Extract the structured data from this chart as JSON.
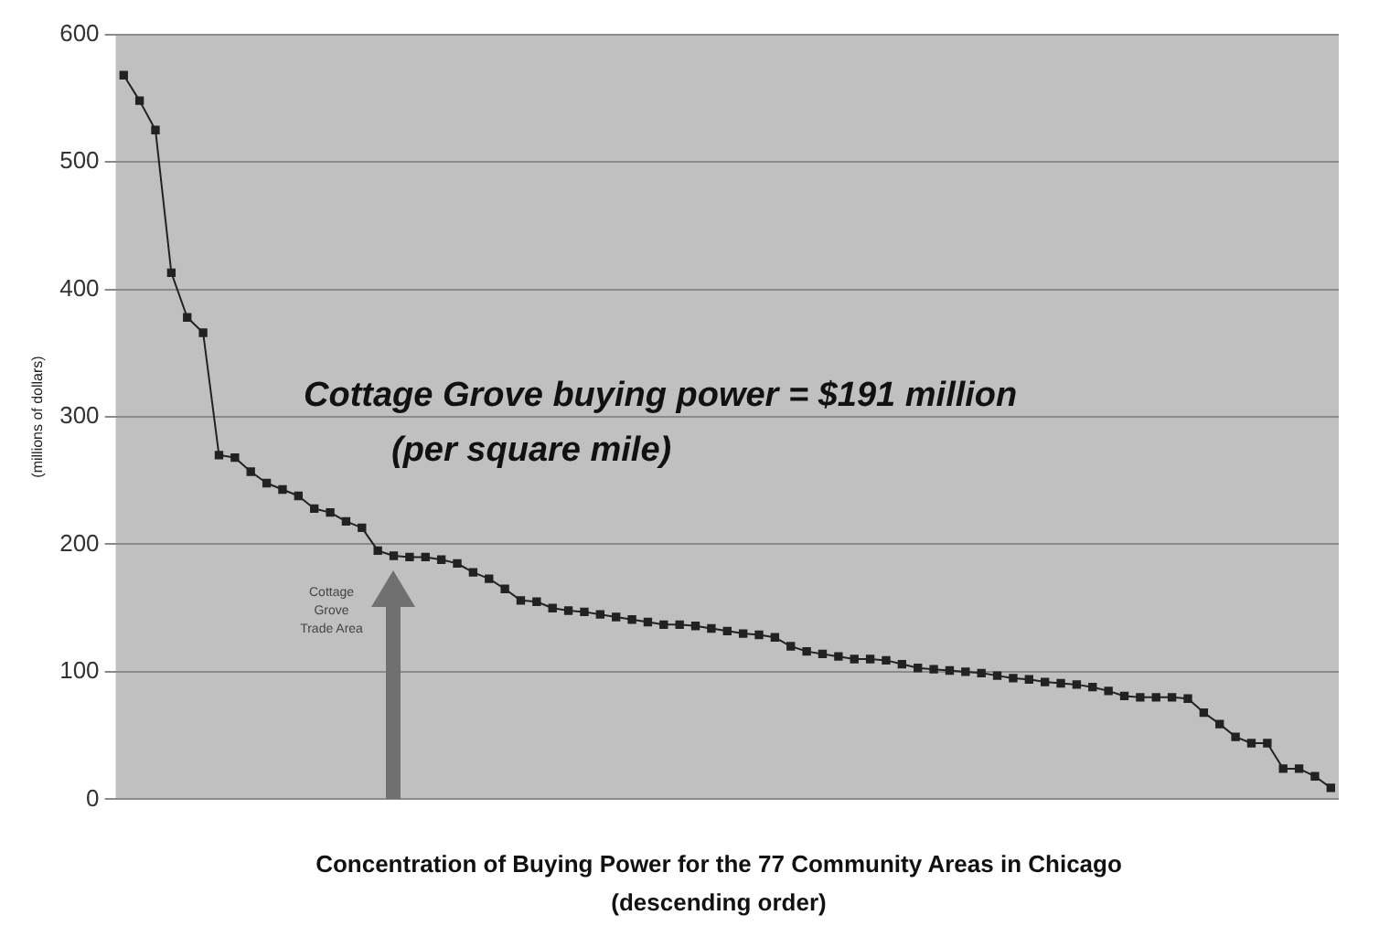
{
  "chart_data": {
    "type": "line",
    "ylabel": "(millions of dollars)",
    "xlabel": "Concentration of Buying Power for the 77 Community Areas in Chicago (descending order)",
    "categories": [
      null,
      null,
      null,
      null,
      null,
      null,
      null,
      null,
      null,
      null,
      null,
      null,
      null,
      null,
      null,
      null,
      null,
      null,
      null,
      null,
      null,
      null,
      null,
      null,
      null,
      null,
      null,
      null,
      null,
      null,
      null,
      null,
      null,
      null,
      null,
      null,
      null,
      null,
      null,
      null,
      null,
      null,
      null,
      null,
      null,
      null,
      null,
      null,
      null,
      null,
      null,
      null,
      null,
      null,
      null,
      null,
      null,
      null,
      null,
      null,
      null,
      null,
      null,
      null,
      null,
      null,
      null,
      null,
      null,
      null,
      null,
      null,
      null,
      null,
      null,
      null,
      null
    ],
    "series": [
      {
        "color": "#222222",
        "values": [
          568,
          548,
          525,
          413,
          378,
          366,
          270,
          268,
          257,
          248,
          243,
          238,
          228,
          225,
          218,
          213,
          195,
          191,
          190,
          190,
          188,
          185,
          178,
          173,
          165,
          156,
          155,
          150,
          148,
          147,
          145,
          143,
          141,
          139,
          137,
          137,
          136,
          134,
          132,
          130,
          129,
          127,
          120,
          116,
          114,
          112,
          110,
          110,
          109,
          106,
          103,
          102,
          101,
          100,
          99,
          97,
          95,
          94,
          92,
          91,
          90,
          88,
          85,
          81,
          80,
          80,
          80,
          79,
          68,
          59,
          49,
          44,
          44,
          24,
          24,
          18,
          9
        ]
      }
    ],
    "ylim": [
      0,
      600
    ],
    "yticks": [
      0,
      100,
      200,
      300,
      400,
      500,
      600
    ],
    "grid": "y",
    "legend": false,
    "tick_labels": "y",
    "marker": "square",
    "line_style": "solid",
    "annotations": [
      "Cottage Grove buying power = $191 million",
      "(per square mile)",
      "Cottage Grove Trade Area"
    ]
  }
}
